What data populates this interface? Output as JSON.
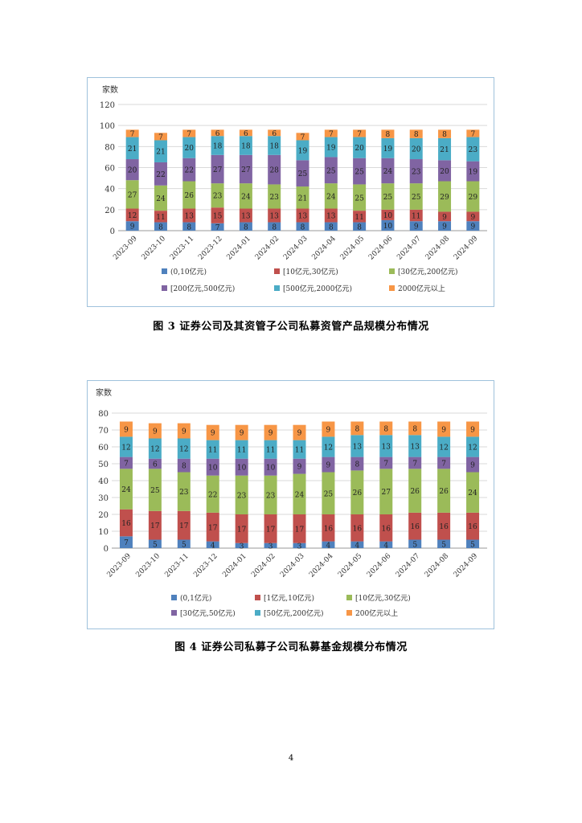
{
  "page_number": "4",
  "captions": [
    "图 3   证券公司及其资管子公司私募资管产品规模分布情况",
    "图 4   证券公司私募子公司私募基金规模分布情况"
  ],
  "chart_data": [
    {
      "type": "bar",
      "stacked": true,
      "title": "",
      "ylabel": "家数",
      "xlabel": "",
      "ylim": [
        0,
        120
      ],
      "yticks": [
        0,
        20,
        40,
        60,
        80,
        100,
        120
      ],
      "grid": true,
      "legend_position": "bottom",
      "categories": [
        "2023-09",
        "2023-10",
        "2023-11",
        "2023-12",
        "2024-01",
        "2024-02",
        "2024-03",
        "2024-04",
        "2024-05",
        "2024-06",
        "2024-07",
        "2024-08",
        "2024-09"
      ],
      "series": [
        {
          "name": "(0,10亿元)",
          "color": "#4f81bd",
          "values": [
            9,
            8,
            8,
            7,
            8,
            8,
            8,
            8,
            8,
            10,
            9,
            9,
            9
          ]
        },
        {
          "name": "[10亿元,30亿元)",
          "color": "#c0504d",
          "values": [
            12,
            11,
            13,
            15,
            13,
            13,
            13,
            13,
            11,
            10,
            11,
            9,
            9
          ]
        },
        {
          "name": "[30亿元,200亿元)",
          "color": "#9bbb59",
          "values": [
            27,
            24,
            26,
            23,
            24,
            23,
            21,
            24,
            25,
            25,
            25,
            29,
            29
          ]
        },
        {
          "name": "[200亿元,500亿元)",
          "color": "#8064a2",
          "values": [
            20,
            22,
            22,
            27,
            27,
            28,
            25,
            25,
            25,
            24,
            23,
            20,
            19
          ]
        },
        {
          "name": "[500亿元,2000亿元)",
          "color": "#4bacc6",
          "values": [
            21,
            21,
            20,
            18,
            18,
            18,
            19,
            19,
            20,
            19,
            20,
            21,
            23
          ]
        },
        {
          "name": "2000亿元以上",
          "color": "#f79646",
          "values": [
            7,
            7,
            7,
            6,
            6,
            6,
            7,
            7,
            7,
            8,
            8,
            8,
            7
          ]
        }
      ]
    },
    {
      "type": "bar",
      "stacked": true,
      "title": "",
      "ylabel": "家数",
      "xlabel": "",
      "ylim": [
        0,
        80
      ],
      "yticks": [
        0,
        10,
        20,
        30,
        40,
        50,
        60,
        70,
        80
      ],
      "grid": true,
      "legend_position": "bottom",
      "categories": [
        "2023-09",
        "2023-10",
        "2023-11",
        "2023-12",
        "2024-01",
        "2024-02",
        "2024-03",
        "2024-04",
        "2024-05",
        "2024-06",
        "2024-07",
        "2024-08",
        "2024-09"
      ],
      "series": [
        {
          "name": "(0,1亿元)",
          "color": "#4f81bd",
          "values": [
            7,
            5,
            5,
            4,
            3,
            3,
            3,
            4,
            4,
            4,
            5,
            5,
            5
          ]
        },
        {
          "name": "[1亿元,10亿元)",
          "color": "#c0504d",
          "values": [
            16,
            17,
            17,
            17,
            17,
            17,
            17,
            16,
            16,
            16,
            16,
            16,
            16
          ]
        },
        {
          "name": "[10亿元,30亿元)",
          "color": "#9bbb59",
          "values": [
            24,
            25,
            23,
            22,
            23,
            23,
            24,
            25,
            26,
            27,
            26,
            26,
            24
          ]
        },
        {
          "name": "[30亿元,50亿元)",
          "color": "#8064a2",
          "values": [
            7,
            6,
            8,
            10,
            10,
            10,
            9,
            9,
            8,
            7,
            7,
            7,
            9
          ]
        },
        {
          "name": "[50亿元,200亿元)",
          "color": "#4bacc6",
          "values": [
            12,
            12,
            12,
            11,
            11,
            11,
            11,
            12,
            13,
            13,
            13,
            12,
            12
          ]
        },
        {
          "name": "200亿元以上",
          "color": "#f79646",
          "values": [
            9,
            9,
            9,
            9,
            9,
            9,
            9,
            9,
            8,
            8,
            8,
            9,
            9
          ]
        }
      ]
    }
  ]
}
